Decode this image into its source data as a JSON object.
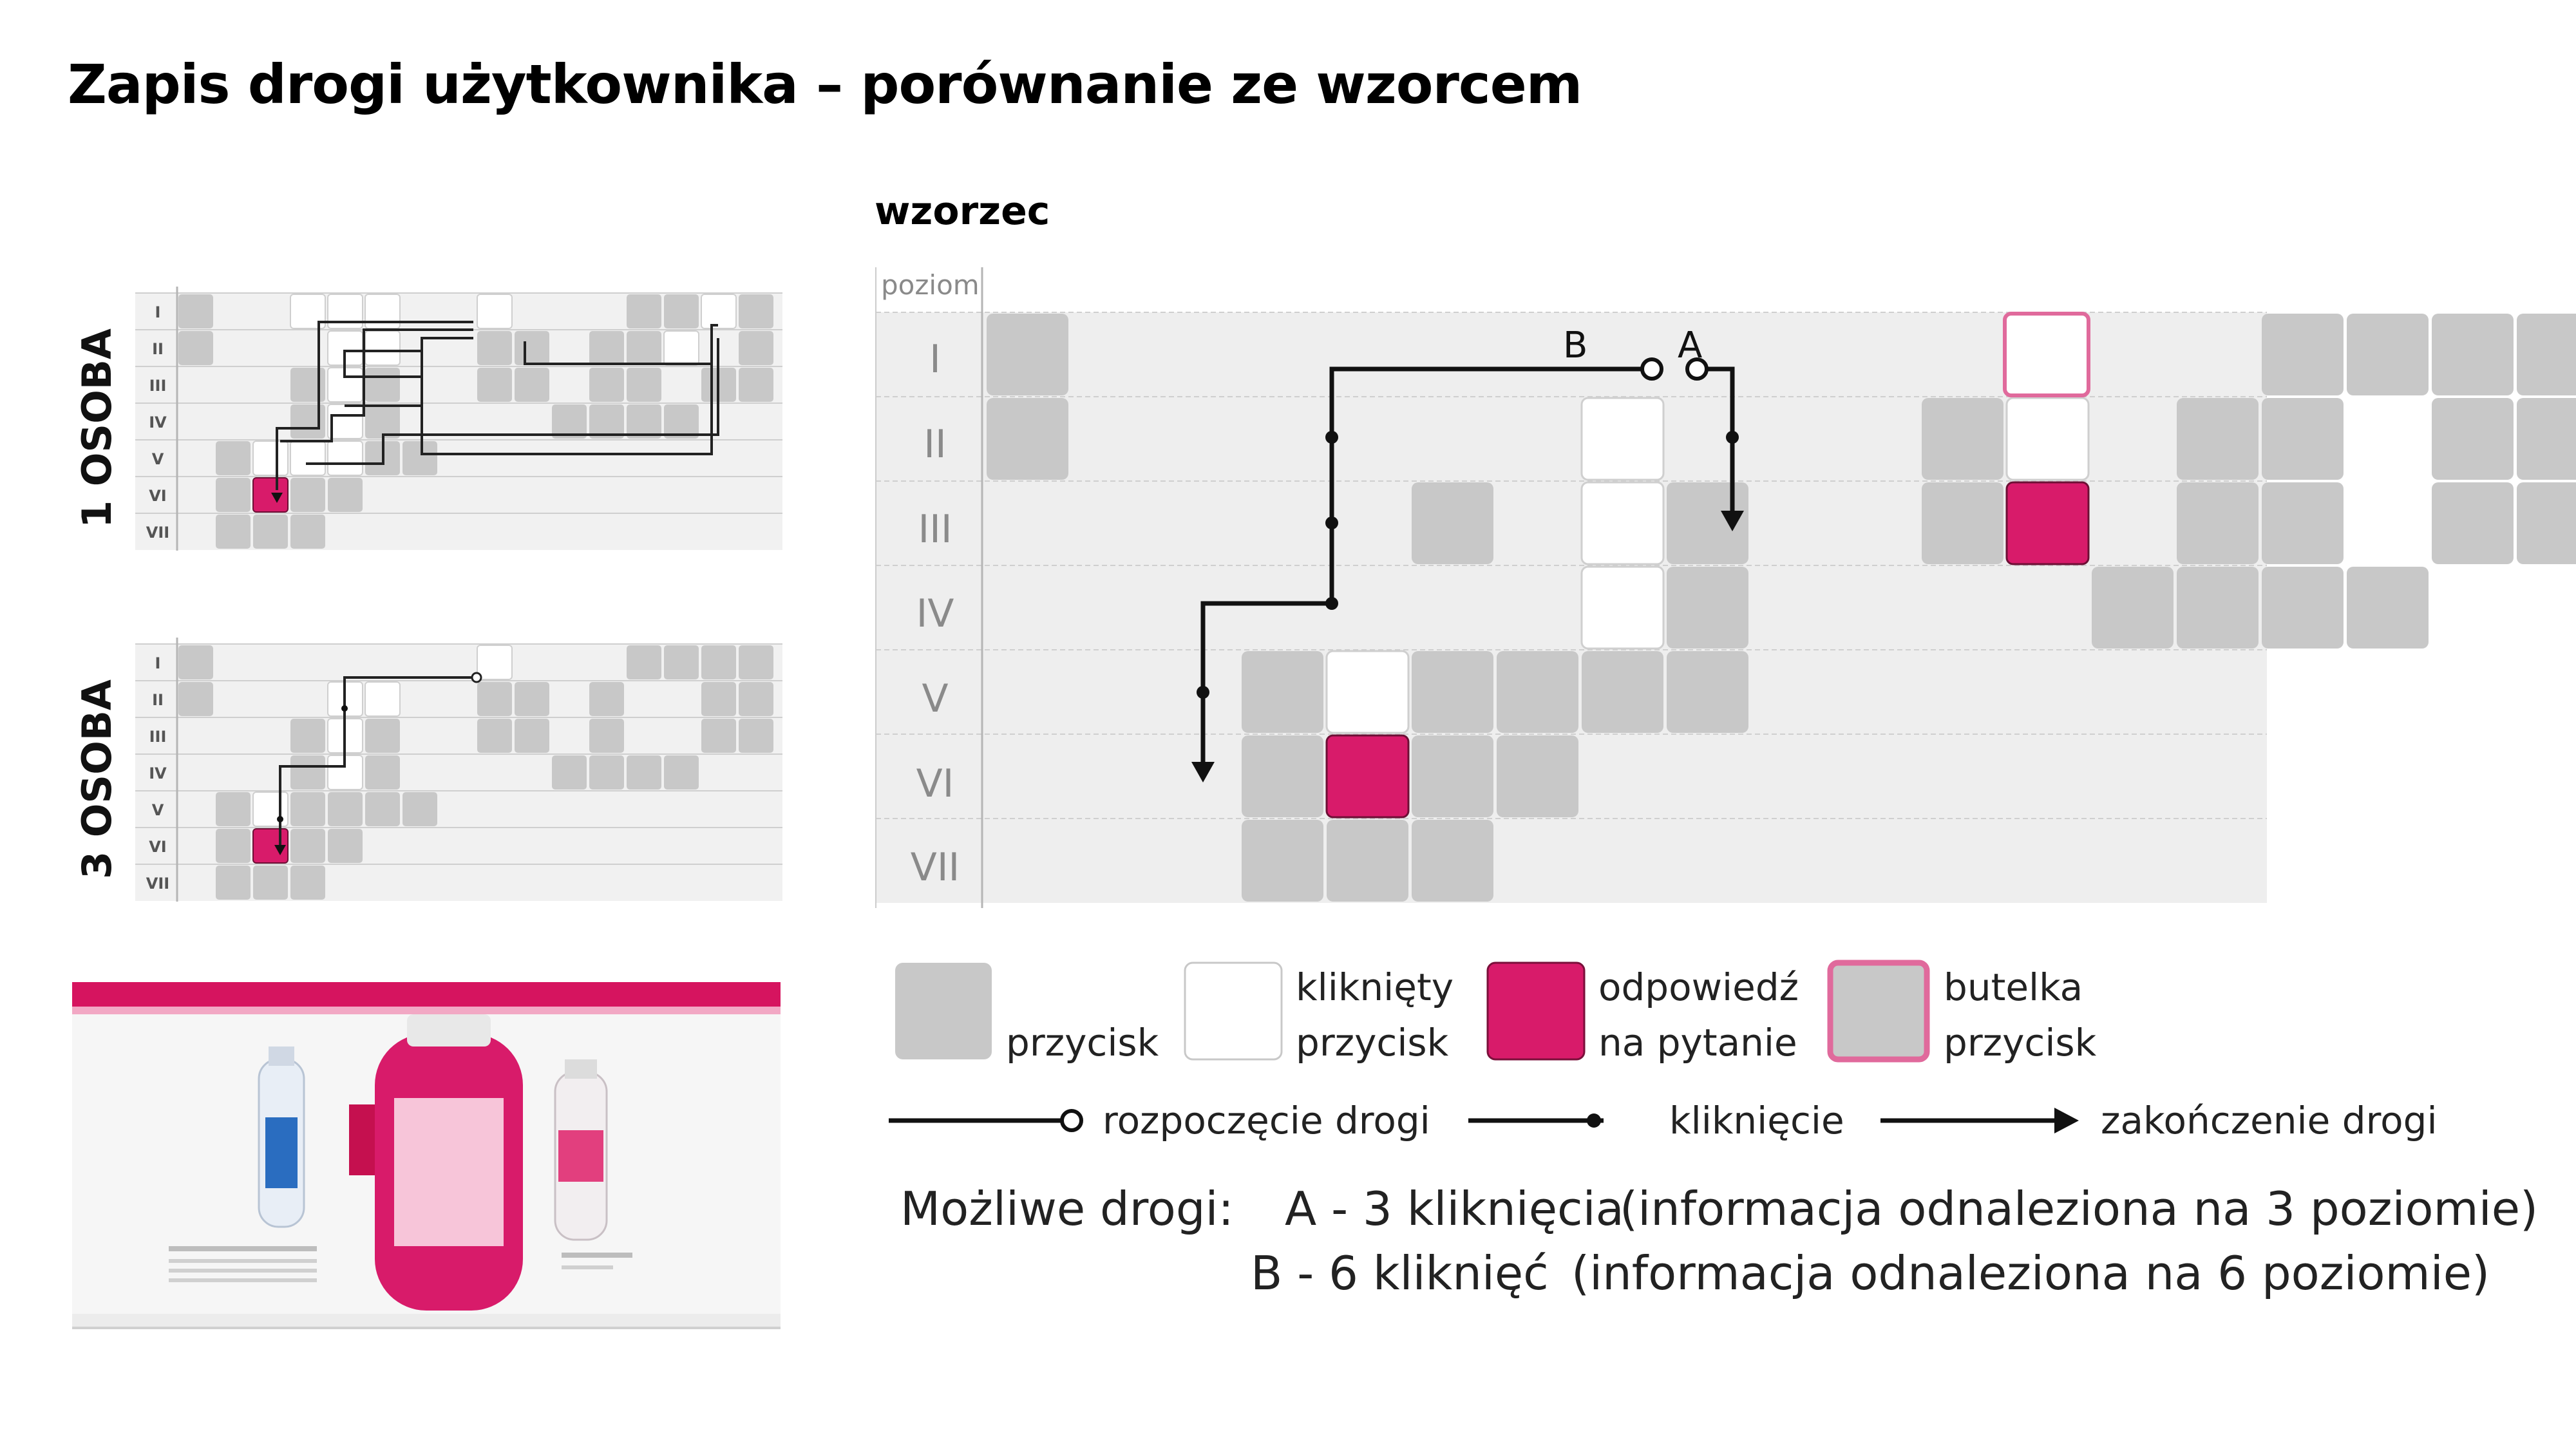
{
  "title": "Zapis drogi użytkownika – porównanie ze wzorcem",
  "subtitle": "wzorzec",
  "main_grid": {
    "header": "poziom",
    "levels": [
      "I",
      "II",
      "III",
      "IV",
      "V",
      "VI",
      "VII"
    ],
    "path_labels": {
      "b": "B",
      "a": "A"
    }
  },
  "small_grids": [
    {
      "label": "1 OSOBA",
      "levels": [
        "I",
        "II",
        "III",
        "IV",
        "V",
        "VI",
        "VII"
      ]
    },
    {
      "label": "3 OSOBA",
      "levels": [
        "I",
        "II",
        "III",
        "IV",
        "V",
        "VI",
        "VII"
      ]
    }
  ],
  "legend": {
    "button": "przycisk",
    "clicked_1": "kliknięty",
    "clicked_2": "przycisk",
    "answer_1": "odpowiedź",
    "answer_2": "na pytanie",
    "bottle_1": "butelka",
    "bottle_2": "przycisk",
    "path_start": "rozpoczęcie drogi",
    "click": "kliknięcie",
    "path_end": "zakończenie drogi"
  },
  "possible_paths": {
    "label": "Możliwe drogi:",
    "a": "A - 3 kliknięcia",
    "a_note": "(informacja odnaleziona na 3 poziomie)",
    "b": "B - 6 kliknięć",
    "b_note": "(informacja odnaleziona na 6 poziomie)"
  },
  "colors": {
    "button": "#c8c8c8",
    "answer": "#d81b6a",
    "bottle_border": "#e06a9c",
    "row_bg": "#eeeeee",
    "path": "#111111"
  }
}
